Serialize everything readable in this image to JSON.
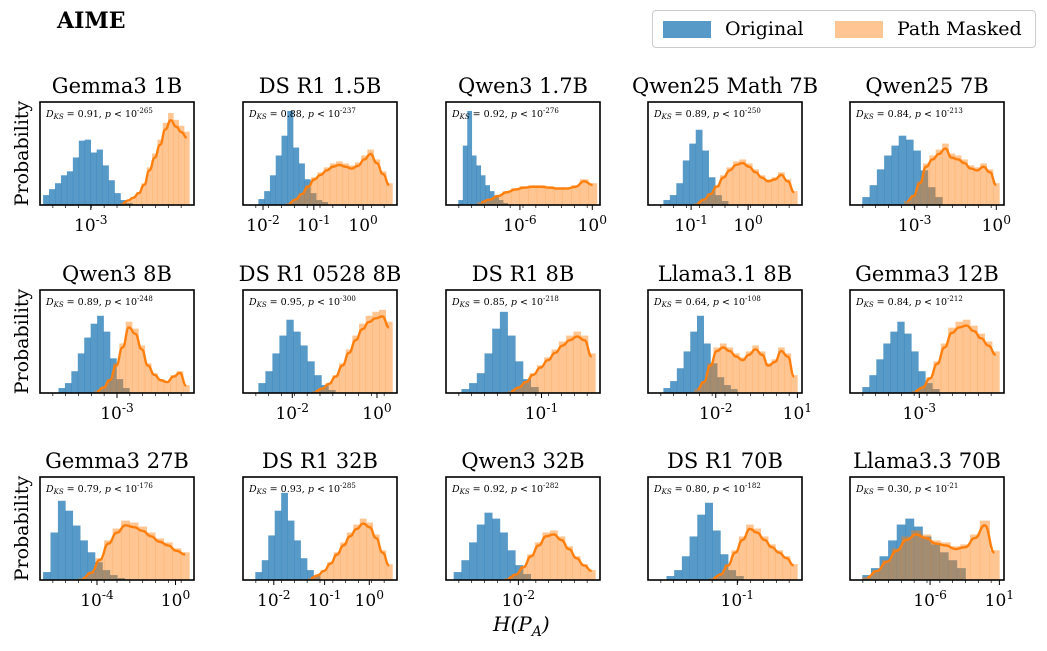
{
  "figure_title": "AIME",
  "legend": {
    "original": "Original",
    "masked": "Path Masked",
    "colors": {
      "original": "#1f77b4",
      "masked": "#ff7f0e"
    }
  },
  "shared_xlabel": "H(P_A)",
  "shared_ylabel": "Probability",
  "chart_data": [
    {
      "type": "histogram",
      "title": "Gemma3 1B",
      "ks": "D_KS = 0.91, p < 10^-265",
      "xticks": [
        "10^-3"
      ],
      "xtick_frac": [
        0.33
      ],
      "original": [
        0.1,
        0.16,
        0.22,
        0.3,
        0.34,
        0.48,
        0.65,
        0.66,
        0.53,
        0.56,
        0.4,
        0.25,
        0.12,
        0.05,
        0.02
      ],
      "masked": [
        0.02,
        0.05,
        0.08,
        0.13,
        0.22,
        0.38,
        0.52,
        0.66,
        0.83,
        0.93,
        0.86,
        0.8,
        0.74
      ],
      "masked_start": 0.52,
      "masked_end": 0.97,
      "orig_start": 0.02,
      "orig_end": 0.6
    },
    {
      "type": "histogram",
      "title": "DS R1 1.5B",
      "ks": "D_KS = 0.88, p < 10^-237",
      "xticks": [
        "10^-2",
        "10^-1",
        "10^0"
      ],
      "xtick_frac": [
        0.13,
        0.46,
        0.78
      ],
      "original": [
        0.06,
        0.14,
        0.3,
        0.5,
        0.7,
        0.95,
        0.58,
        0.42,
        0.26,
        0.12,
        0.05,
        0.03
      ],
      "masked": [
        0.02,
        0.06,
        0.12,
        0.2,
        0.28,
        0.33,
        0.38,
        0.42,
        0.44,
        0.42,
        0.4,
        0.43,
        0.5,
        0.56,
        0.46,
        0.34,
        0.22
      ],
      "masked_start": 0.28,
      "masked_end": 0.97,
      "orig_start": 0.1,
      "orig_end": 0.55
    },
    {
      "type": "histogram",
      "title": "Qwen3 1.7B",
      "ks": "D_KS = 0.92, p < 10^-276",
      "xticks": [
        "10^-6",
        "10^0"
      ],
      "xtick_frac": [
        0.48,
        0.95
      ],
      "original": [
        0.05,
        0.6,
        0.95,
        0.5,
        0.4,
        0.3,
        0.2,
        0.14,
        0.08,
        0.05,
        0.02
      ],
      "masked": [
        0.03,
        0.06,
        0.1,
        0.14,
        0.17,
        0.19,
        0.2,
        0.2,
        0.19,
        0.18,
        0.18,
        0.2,
        0.26,
        0.22
      ],
      "masked_start": 0.2,
      "masked_end": 0.98,
      "orig_start": 0.08,
      "orig_end": 0.4
    },
    {
      "type": "histogram",
      "title": "Qwen25 Math 7B",
      "ks": "D_KS = 0.89, p < 10^-250",
      "xticks": [
        "10^-1",
        "10^0"
      ],
      "xtick_frac": [
        0.28,
        0.65
      ],
      "original": [
        0.05,
        0.1,
        0.22,
        0.45,
        0.62,
        0.76,
        0.55,
        0.28,
        0.1,
        0.04
      ],
      "masked": [
        0.02,
        0.06,
        0.12,
        0.2,
        0.3,
        0.38,
        0.44,
        0.46,
        0.42,
        0.36,
        0.3,
        0.26,
        0.28,
        0.33,
        0.26,
        0.14
      ],
      "masked_start": 0.3,
      "masked_end": 0.97,
      "orig_start": 0.1,
      "orig_end": 0.52
    },
    {
      "type": "histogram",
      "title": "Qwen25 7B",
      "ks": "D_KS = 0.84, p < 10^-213",
      "xticks": [
        "10^-3",
        "10^0"
      ],
      "xtick_frac": [
        0.42,
        0.95
      ],
      "original": [
        0.08,
        0.2,
        0.36,
        0.5,
        0.6,
        0.7,
        0.66,
        0.55,
        0.35,
        0.18,
        0.08
      ],
      "masked": [
        0.04,
        0.1,
        0.24,
        0.42,
        0.5,
        0.56,
        0.62,
        0.52,
        0.5,
        0.46,
        0.4,
        0.38,
        0.42,
        0.36,
        0.22
      ],
      "masked_start": 0.35,
      "masked_end": 0.97,
      "orig_start": 0.08,
      "orig_end": 0.6
    },
    {
      "type": "histogram",
      "title": "Qwen3 8B",
      "ks": "D_KS = 0.89, p < 10^-248",
      "xticks": [
        "10^-3"
      ],
      "xtick_frac": [
        0.5
      ],
      "original": [
        0.05,
        0.1,
        0.22,
        0.4,
        0.56,
        0.7,
        0.78,
        0.62,
        0.35,
        0.14,
        0.05
      ],
      "masked": [
        0.02,
        0.06,
        0.14,
        0.3,
        0.5,
        0.72,
        0.65,
        0.48,
        0.3,
        0.2,
        0.14,
        0.12,
        0.18,
        0.22,
        0.08
      ],
      "masked_start": 0.35,
      "masked_end": 0.97,
      "orig_start": 0.12,
      "orig_end": 0.58
    },
    {
      "type": "histogram",
      "title": "DS R1 0528 8B",
      "ks": "D_KS = 0.95, p < 10^-300",
      "xticks": [
        "10^-2",
        "10^0"
      ],
      "xtick_frac": [
        0.32,
        0.87
      ],
      "original": [
        0.1,
        0.22,
        0.4,
        0.58,
        0.74,
        0.62,
        0.48,
        0.32,
        0.18,
        0.08,
        0.03
      ],
      "masked": [
        0.02,
        0.05,
        0.1,
        0.18,
        0.3,
        0.44,
        0.58,
        0.7,
        0.78,
        0.82,
        0.84,
        0.72
      ],
      "masked_start": 0.45,
      "masked_end": 0.97,
      "orig_start": 0.1,
      "orig_end": 0.6
    },
    {
      "type": "histogram",
      "title": "DS R1 8B",
      "ks": "D_KS = 0.85, p < 10^-218",
      "xticks": [
        "10^-1"
      ],
      "xtick_frac": [
        0.62
      ],
      "original": [
        0.04,
        0.1,
        0.2,
        0.4,
        0.65,
        0.82,
        0.58,
        0.32,
        0.14,
        0.06
      ],
      "masked": [
        0.02,
        0.06,
        0.12,
        0.2,
        0.28,
        0.36,
        0.44,
        0.52,
        0.58,
        0.62,
        0.58,
        0.4
      ],
      "masked_start": 0.4,
      "masked_end": 0.97,
      "orig_start": 0.1,
      "orig_end": 0.6
    },
    {
      "type": "histogram",
      "title": "Llama3.1 8B",
      "ks": "D_KS = 0.64, p < 10^-108",
      "xticks": [
        "10^-2",
        "10^1"
      ],
      "xtick_frac": [
        0.44,
        0.97
      ],
      "original": [
        0.05,
        0.12,
        0.25,
        0.42,
        0.62,
        0.78,
        0.5,
        0.3,
        0.16,
        0.08,
        0.04
      ],
      "masked": [
        0.04,
        0.12,
        0.3,
        0.46,
        0.5,
        0.46,
        0.4,
        0.36,
        0.42,
        0.48,
        0.42,
        0.3,
        0.34,
        0.46,
        0.4,
        0.18
      ],
      "masked_start": 0.3,
      "masked_end": 0.97,
      "orig_start": 0.1,
      "orig_end": 0.58
    },
    {
      "type": "histogram",
      "title": "Gemma3 12B",
      "ks": "D_KS = 0.84, p < 10^-212",
      "xticks": [
        "10^-3"
      ],
      "xtick_frac": [
        0.45
      ],
      "original": [
        0.06,
        0.18,
        0.34,
        0.5,
        0.62,
        0.72,
        0.6,
        0.42,
        0.22,
        0.1,
        0.04
      ],
      "masked": [
        0.02,
        0.06,
        0.16,
        0.32,
        0.5,
        0.66,
        0.72,
        0.74,
        0.68,
        0.6,
        0.52,
        0.42
      ],
      "masked_start": 0.4,
      "masked_end": 0.97,
      "orig_start": 0.08,
      "orig_end": 0.58
    },
    {
      "type": "histogram",
      "title": "Gemma3 27B",
      "ks": "D_KS = 0.79, p < 10^-176",
      "xticks": [
        "10^-4",
        "10^0"
      ],
      "xtick_frac": [
        0.37,
        0.88
      ],
      "original": [
        0.08,
        0.48,
        0.8,
        0.7,
        0.55,
        0.4,
        0.28,
        0.18,
        0.1,
        0.05,
        0.02
      ],
      "masked": [
        0.02,
        0.08,
        0.22,
        0.4,
        0.52,
        0.6,
        0.58,
        0.54,
        0.48,
        0.42,
        0.38,
        0.32,
        0.28
      ],
      "masked_start": 0.25,
      "masked_end": 0.97,
      "orig_start": 0.02,
      "orig_end": 0.55
    },
    {
      "type": "histogram",
      "title": "DS R1 32B",
      "ks": "D_KS = 0.93, p < 10^-285",
      "xticks": [
        "10^-2",
        "10^-1",
        "10^0"
      ],
      "xtick_frac": [
        0.2,
        0.53,
        0.82
      ],
      "original": [
        0.08,
        0.2,
        0.45,
        0.7,
        0.88,
        0.6,
        0.4,
        0.22,
        0.1,
        0.04
      ],
      "masked": [
        0.02,
        0.05,
        0.1,
        0.18,
        0.28,
        0.38,
        0.48,
        0.56,
        0.62,
        0.58,
        0.46,
        0.3,
        0.16
      ],
      "masked_start": 0.42,
      "masked_end": 0.97,
      "orig_start": 0.08,
      "orig_end": 0.5
    },
    {
      "type": "histogram",
      "title": "Qwen3 32B",
      "ks": "D_KS = 0.92, p < 10^-282",
      "xticks": [
        "10^-2"
      ],
      "xtick_frac": [
        0.47
      ],
      "original": [
        0.08,
        0.2,
        0.38,
        0.56,
        0.68,
        0.62,
        0.48,
        0.3,
        0.15,
        0.06
      ],
      "masked": [
        0.02,
        0.06,
        0.14,
        0.26,
        0.38,
        0.48,
        0.5,
        0.44,
        0.34,
        0.24,
        0.16,
        0.1
      ],
      "masked_start": 0.38,
      "masked_end": 0.97,
      "orig_start": 0.05,
      "orig_end": 0.55
    },
    {
      "type": "histogram",
      "title": "DS R1 70B",
      "ks": "D_KS = 0.80, p < 10^-182",
      "xticks": [
        "10^-1"
      ],
      "xtick_frac": [
        0.58
      ],
      "original": [
        0.04,
        0.1,
        0.24,
        0.44,
        0.66,
        0.78,
        0.5,
        0.26,
        0.1,
        0.04
      ],
      "masked": [
        0.02,
        0.06,
        0.16,
        0.3,
        0.44,
        0.56,
        0.52,
        0.44,
        0.36,
        0.3,
        0.24,
        0.16
      ],
      "masked_start": 0.4,
      "masked_end": 0.97,
      "orig_start": 0.12,
      "orig_end": 0.62
    },
    {
      "type": "histogram",
      "title": "Llama3.3 70B",
      "ks": "D_KS = 0.30, p < 10^-21",
      "xticks": [
        "10^-6",
        "10^1"
      ],
      "xtick_frac": [
        0.52,
        0.97
      ],
      "original": [
        0.05,
        0.12,
        0.24,
        0.4,
        0.56,
        0.62,
        0.54,
        0.44,
        0.36,
        0.28,
        0.2,
        0.12
      ],
      "masked": [
        0.03,
        0.1,
        0.2,
        0.32,
        0.44,
        0.5,
        0.46,
        0.4,
        0.38,
        0.34,
        0.36,
        0.46,
        0.6,
        0.3
      ],
      "masked_start": 0.08,
      "masked_end": 0.97,
      "orig_start": 0.08,
      "orig_end": 0.75
    }
  ]
}
